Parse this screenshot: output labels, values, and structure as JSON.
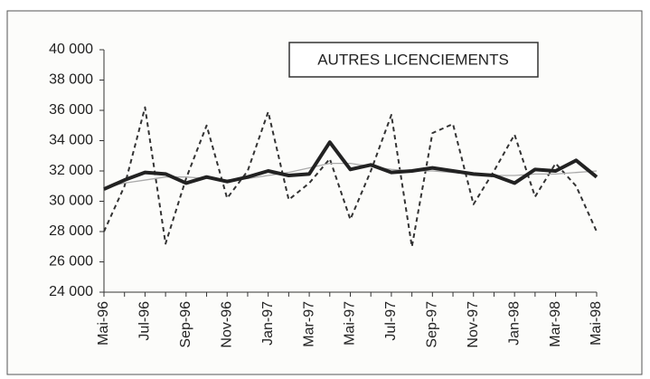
{
  "chart_data": {
    "type": "line",
    "title": "AUTRES LICENCIEMENTS",
    "categories": [
      "Mai-96",
      null,
      "Jul-96",
      null,
      "Sep-96",
      null,
      "Nov-96",
      null,
      "Jan-97",
      null,
      "Mar-97",
      null,
      "Mai-97",
      null,
      "Jul-97",
      null,
      "Sep-97",
      null,
      "Nov-97",
      null,
      "Jan-98",
      null,
      "Mar-98",
      null,
      "Mai-98"
    ],
    "series": [
      {
        "color": "#333333",
        "style": "dashed",
        "values": [
          28000,
          31000,
          36200,
          27200,
          31500,
          35000,
          30200,
          32000,
          35900,
          30100,
          31200,
          32800,
          28800,
          32000,
          35700,
          27000,
          34500,
          35100,
          29800,
          32000,
          34400,
          30300,
          32500,
          31000,
          28000
        ]
      },
      {
        "color": "#aaaaaa",
        "style": "thin",
        "values": [
          30900,
          31200,
          31400,
          31600,
          31600,
          31500,
          31400,
          31500,
          31700,
          31900,
          32200,
          32500,
          32500,
          32300,
          32100,
          32000,
          32000,
          31900,
          31800,
          31700,
          31700,
          31800,
          31800,
          31900,
          32000
        ]
      },
      {
        "color": "#222222",
        "style": "bold",
        "values": [
          30800,
          31400,
          31900,
          31800,
          31200,
          31600,
          31300,
          31600,
          32000,
          31700,
          31800,
          33900,
          32100,
          32400,
          31900,
          32000,
          32200,
          32000,
          31800,
          31700,
          31200,
          32100,
          32000,
          32700,
          31600
        ]
      }
    ],
    "ylim": [
      24000,
      40000
    ],
    "yticks": [
      {
        "value": 24000,
        "label": "24 000"
      },
      {
        "value": 26000,
        "label": "26 000"
      },
      {
        "value": 28000,
        "label": "28 000"
      },
      {
        "value": 30000,
        "label": "30 000"
      },
      {
        "value": 32000,
        "label": "32 000"
      },
      {
        "value": 34000,
        "label": "34 000"
      },
      {
        "value": 36000,
        "label": "36 000"
      },
      {
        "value": 38000,
        "label": "38 000"
      },
      {
        "value": 40000,
        "label": "40 000"
      }
    ],
    "grid": false
  }
}
